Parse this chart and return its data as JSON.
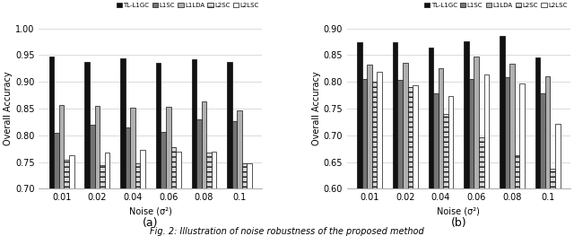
{
  "noise_labels": [
    "0.01",
    "0.02",
    "0.04",
    "0.06",
    "0.08",
    "0.1"
  ],
  "legend_labels": [
    "TL-L1GC",
    "L1SC",
    "L1LDA",
    "L2SC",
    "L2LSC"
  ],
  "bar_colors": [
    "#111111",
    "#757575",
    "#b0b0b0",
    "#d8d8d8",
    "#ffffff"
  ],
  "bar_edgecolors": [
    "#111111",
    "#111111",
    "#111111",
    "#111111",
    "#111111"
  ],
  "bar_hatches": [
    null,
    null,
    null,
    "---",
    null
  ],
  "subplot_a": {
    "ylabel": "Overall Accuracy",
    "xlabel": "Noise (σ²)",
    "ylim": [
      0.7,
      1.0
    ],
    "yticks": [
      0.7,
      0.75,
      0.8,
      0.85,
      0.9,
      0.95,
      1.0
    ],
    "data": {
      "TL-L1GC": [
        0.948,
        0.937,
        0.944,
        0.935,
        0.943,
        0.937
      ],
      "L1SC": [
        0.805,
        0.82,
        0.815,
        0.807,
        0.83,
        0.827
      ],
      "L1LDA": [
        0.856,
        0.855,
        0.852,
        0.854,
        0.864,
        0.846
      ],
      "L2SC": [
        0.754,
        0.744,
        0.748,
        0.777,
        0.768,
        0.748
      ],
      "L2LSC": [
        0.762,
        0.768,
        0.773,
        0.77,
        0.769,
        0.748
      ]
    }
  },
  "subplot_b": {
    "ylabel": "Overall Accuracy",
    "xlabel": "Noise (σ²)",
    "ylim": [
      0.6,
      0.9
    ],
    "yticks": [
      0.6,
      0.65,
      0.7,
      0.75,
      0.8,
      0.85,
      0.9
    ],
    "data": {
      "TL-L1GC": [
        0.874,
        0.874,
        0.864,
        0.875,
        0.886,
        0.845
      ],
      "L1SC": [
        0.806,
        0.804,
        0.779,
        0.805,
        0.808,
        0.779
      ],
      "L1LDA": [
        0.833,
        0.836,
        0.826,
        0.847,
        0.834,
        0.811
      ],
      "L2SC": [
        0.8,
        0.79,
        0.74,
        0.696,
        0.663,
        0.638
      ],
      "L2LSC": [
        0.819,
        0.793,
        0.773,
        0.813,
        0.797,
        0.722
      ]
    }
  },
  "sublabels": [
    "(a)",
    "(b)"
  ],
  "figure_caption": "Fig. 2: Illustration of noise robustness of the proposed method"
}
